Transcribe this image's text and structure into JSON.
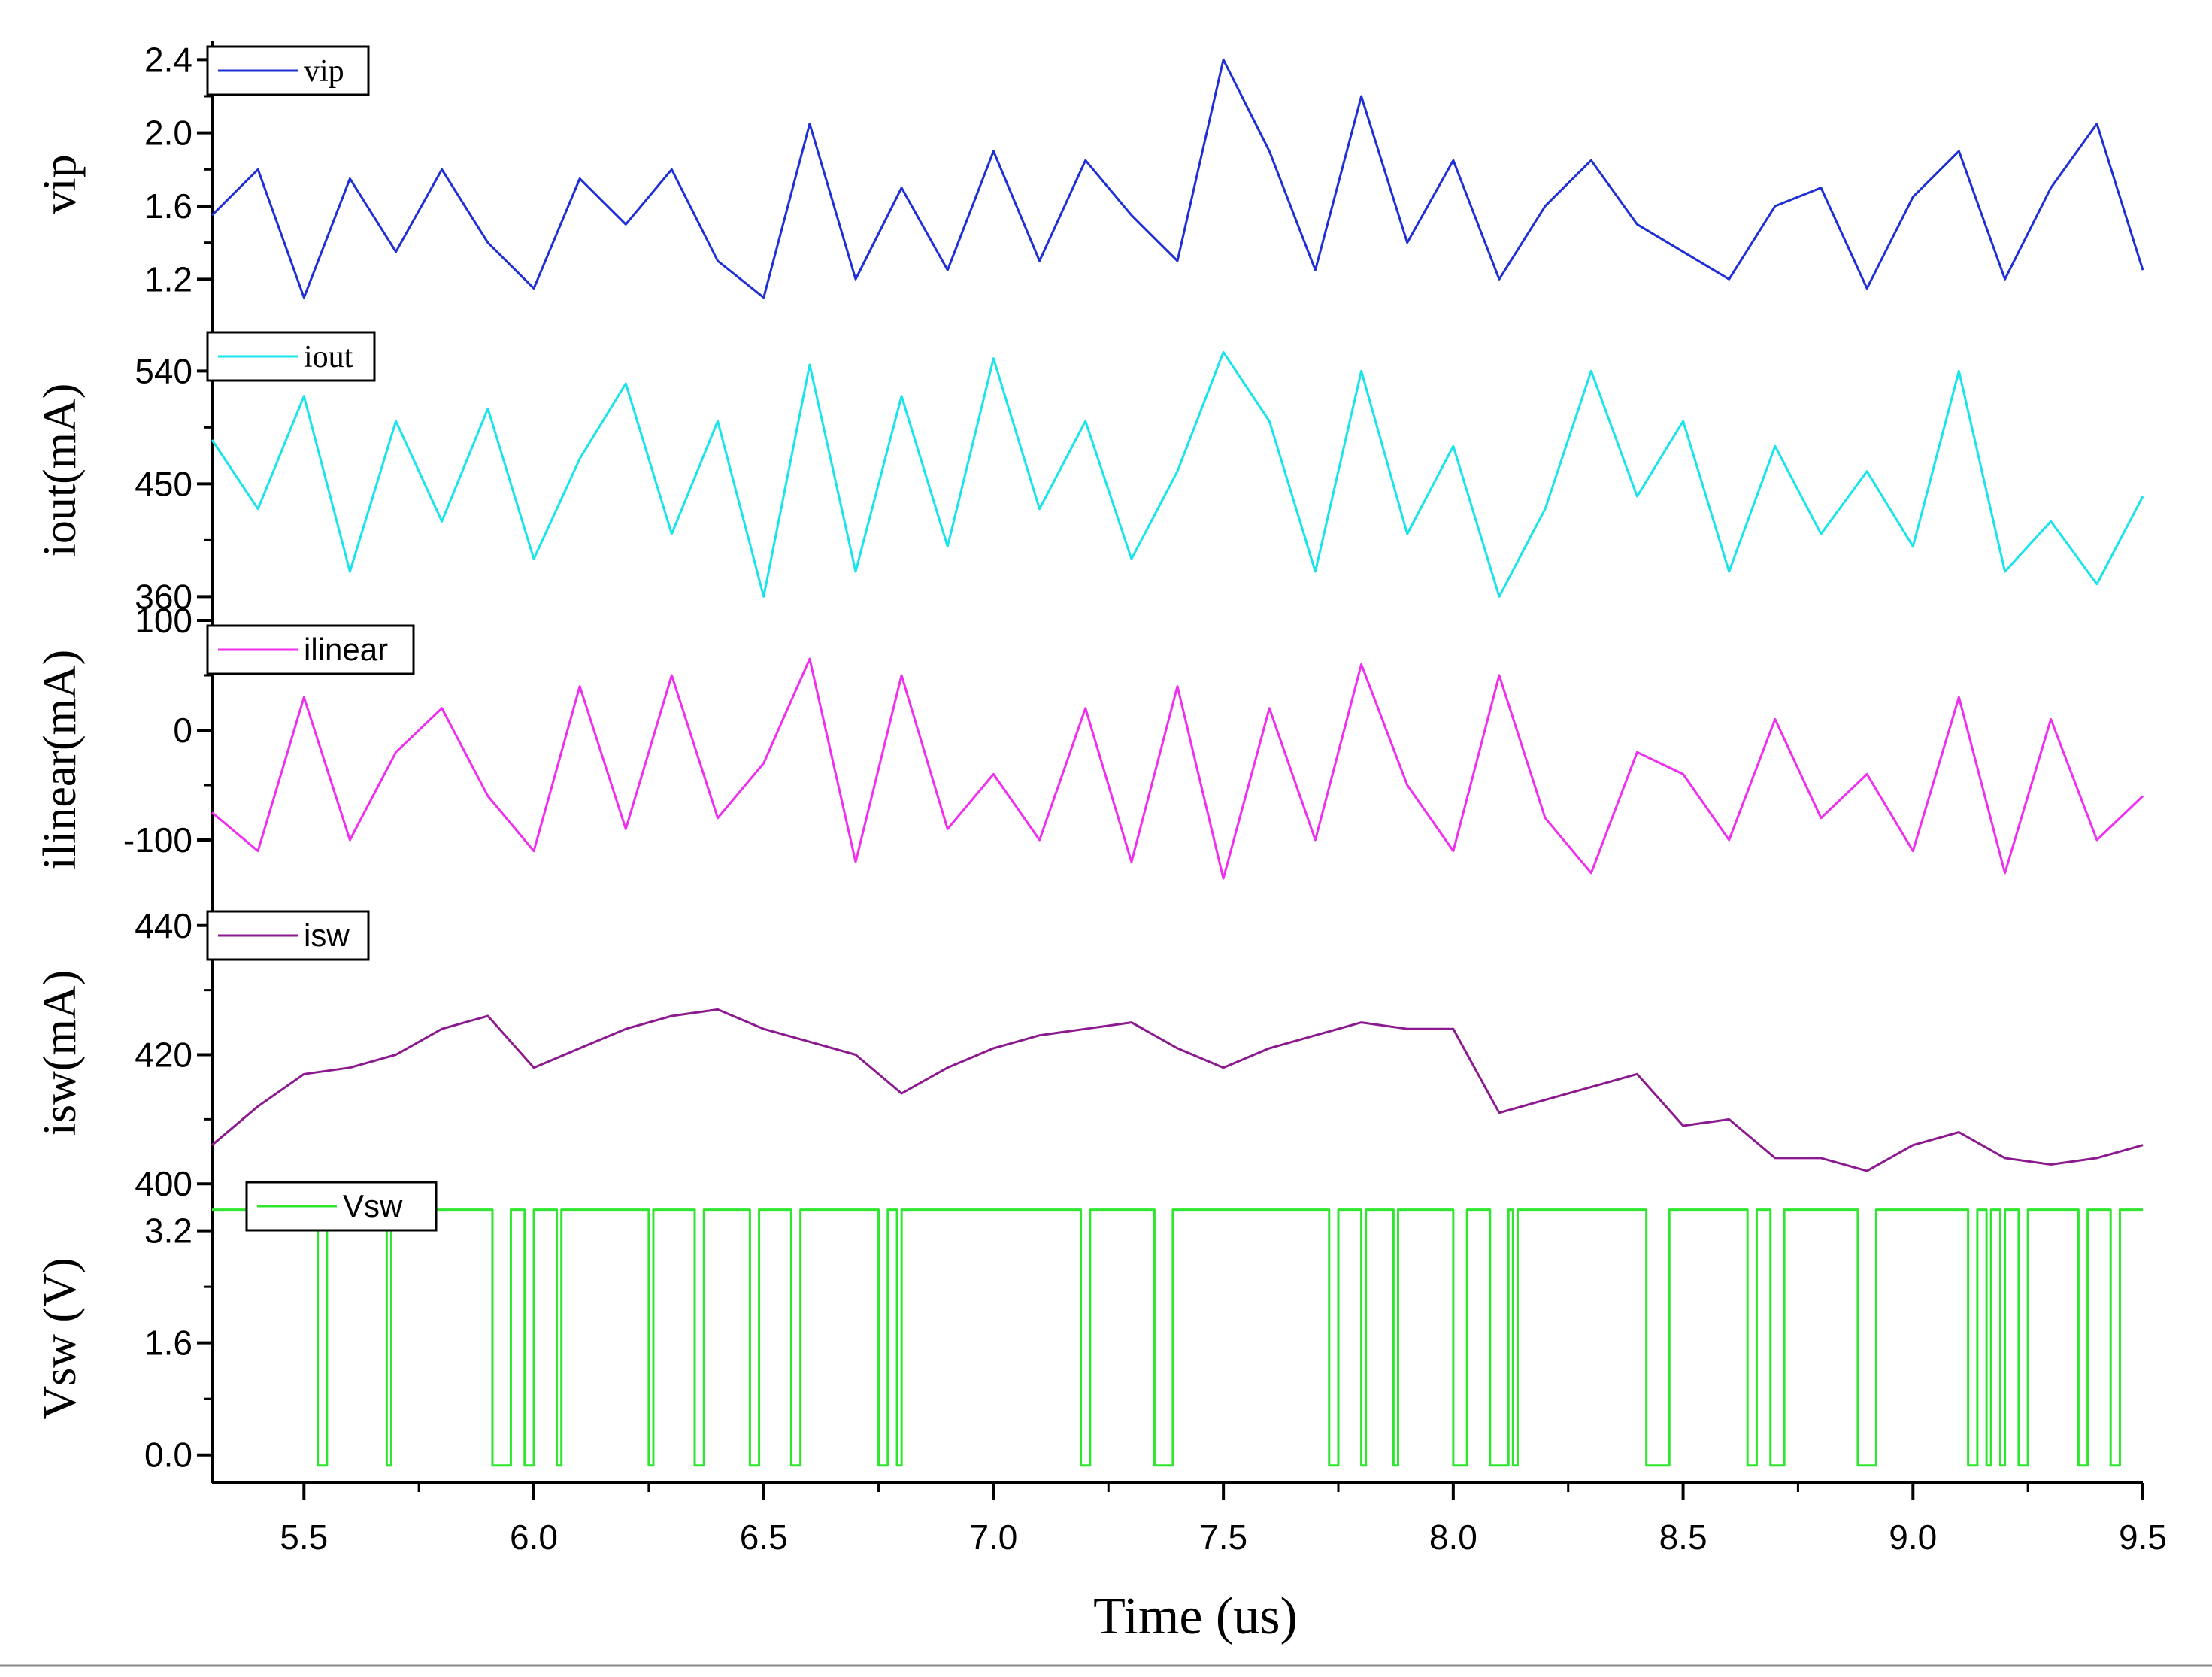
{
  "chart_data": {
    "type": "line",
    "xlabel": "Time (us)",
    "xlim": [
      5.3,
      9.5
    ],
    "xticks": [
      "5.5",
      "6.0",
      "6.5",
      "7.0",
      "7.5",
      "8.0",
      "8.5",
      "9.0",
      "9.5"
    ],
    "xtick_values": [
      5.5,
      6.0,
      6.5,
      7.0,
      7.5,
      8.0,
      8.5,
      9.0,
      9.5
    ],
    "panels": [
      {
        "key": "vip",
        "legend": "vip",
        "ylabel": "vip",
        "color": "#1f2fd6",
        "ylim": [
          1.0,
          2.5
        ],
        "yticks": [
          "1.2",
          "1.6",
          "2.0",
          "2.4"
        ],
        "ytick_values": [
          1.2,
          1.6,
          2.0,
          2.4
        ],
        "x": [
          5.3,
          5.4,
          5.5,
          5.6,
          5.7,
          5.8,
          5.9,
          6.0,
          6.1,
          6.2,
          6.3,
          6.4,
          6.5,
          6.6,
          6.7,
          6.8,
          6.9,
          7.0,
          7.1,
          7.2,
          7.3,
          7.4,
          7.5,
          7.6,
          7.7,
          7.8,
          7.9,
          8.0,
          8.1,
          8.2,
          8.3,
          8.4,
          8.5,
          8.6,
          8.7,
          8.8,
          8.9,
          9.0,
          9.1,
          9.2,
          9.3,
          9.4,
          9.5
        ],
        "values": [
          1.55,
          1.8,
          1.1,
          1.75,
          1.35,
          1.8,
          1.4,
          1.15,
          1.75,
          1.5,
          1.8,
          1.3,
          1.1,
          2.05,
          1.2,
          1.7,
          1.25,
          1.9,
          1.3,
          1.85,
          1.55,
          1.3,
          2.4,
          1.9,
          1.25,
          2.2,
          1.4,
          1.85,
          1.2,
          1.6,
          1.85,
          1.5,
          1.35,
          1.2,
          1.6,
          1.7,
          1.15,
          1.65,
          1.9,
          1.2,
          1.7,
          2.05,
          1.25
        ]
      },
      {
        "key": "iout",
        "legend": "iout",
        "ylabel": "iout(mA)",
        "color": "#18e4ec",
        "ylim": [
          350,
          575
        ],
        "yticks": [
          "360",
          "450",
          "540"
        ],
        "ytick_values": [
          360,
          450,
          540
        ],
        "x": [
          5.3,
          5.4,
          5.5,
          5.6,
          5.7,
          5.8,
          5.9,
          6.0,
          6.1,
          6.2,
          6.3,
          6.4,
          6.5,
          6.6,
          6.7,
          6.8,
          6.9,
          7.0,
          7.1,
          7.2,
          7.3,
          7.4,
          7.5,
          7.6,
          7.7,
          7.8,
          7.9,
          8.0,
          8.1,
          8.2,
          8.3,
          8.4,
          8.5,
          8.6,
          8.7,
          8.8,
          8.9,
          9.0,
          9.1,
          9.2,
          9.3,
          9.4,
          9.5
        ],
        "values": [
          485,
          430,
          520,
          380,
          500,
          420,
          510,
          390,
          470,
          530,
          410,
          500,
          360,
          545,
          380,
          520,
          400,
          550,
          430,
          500,
          390,
          460,
          555,
          500,
          380,
          540,
          410,
          480,
          360,
          430,
          540,
          440,
          500,
          380,
          480,
          410,
          460,
          400,
          540,
          380,
          420,
          370,
          440
        ]
      },
      {
        "key": "ilinear",
        "legend": "ilinear",
        "ylabel": "ilinear(mA)",
        "color": "#f02ef0",
        "ylim": [
          -150,
          100
        ],
        "yticks": [
          "-100",
          "0",
          "100"
        ],
        "ytick_values": [
          -100,
          0,
          100
        ],
        "x": [
          5.3,
          5.4,
          5.5,
          5.6,
          5.7,
          5.8,
          5.9,
          6.0,
          6.1,
          6.2,
          6.3,
          6.4,
          6.5,
          6.6,
          6.7,
          6.8,
          6.9,
          7.0,
          7.1,
          7.2,
          7.3,
          7.4,
          7.5,
          7.6,
          7.7,
          7.8,
          7.9,
          8.0,
          8.1,
          8.2,
          8.3,
          8.4,
          8.5,
          8.6,
          8.7,
          8.8,
          8.9,
          9.0,
          9.1,
          9.2,
          9.3,
          9.4,
          9.5
        ],
        "values": [
          -75,
          -110,
          30,
          -100,
          -20,
          20,
          -60,
          -110,
          40,
          -90,
          50,
          -80,
          -30,
          65,
          -120,
          50,
          -90,
          -40,
          -100,
          20,
          -120,
          40,
          -135,
          20,
          -100,
          60,
          -50,
          -110,
          50,
          -80,
          -130,
          -20,
          -40,
          -100,
          10,
          -80,
          -40,
          -110,
          30,
          -130,
          10,
          -100,
          -60
        ]
      },
      {
        "key": "isw",
        "legend": "isw",
        "ylabel": "isw(mA)",
        "color": "#8c1a8f",
        "ylim": [
          397,
          443
        ],
        "yticks": [
          "400",
          "420",
          "440"
        ],
        "ytick_values": [
          400,
          420,
          440
        ],
        "x": [
          5.3,
          5.4,
          5.5,
          5.6,
          5.7,
          5.8,
          5.9,
          6.0,
          6.1,
          6.2,
          6.3,
          6.4,
          6.5,
          6.6,
          6.7,
          6.8,
          6.9,
          7.0,
          7.1,
          7.2,
          7.3,
          7.4,
          7.5,
          7.6,
          7.7,
          7.8,
          7.9,
          8.0,
          8.1,
          8.2,
          8.3,
          8.4,
          8.5,
          8.6,
          8.7,
          8.8,
          8.9,
          9.0,
          9.1,
          9.2,
          9.3,
          9.4,
          9.5
        ],
        "values": [
          406,
          412,
          417,
          418,
          420,
          424,
          426,
          418,
          421,
          424,
          426,
          427,
          424,
          422,
          420,
          414,
          418,
          421,
          423,
          424,
          425,
          421,
          418,
          421,
          423,
          425,
          424,
          424,
          411,
          413,
          415,
          417,
          409,
          410,
          404,
          404,
          402,
          406,
          408,
          404,
          403,
          404,
          406
        ]
      },
      {
        "key": "vsw",
        "legend": "Vsw",
        "ylabel": "Vsw (V)",
        "color": "#2ee62e",
        "ylim": [
          -0.4,
          3.7
        ],
        "yticks": [
          "0.0",
          "1.6",
          "3.2"
        ],
        "ytick_values": [
          0.0,
          1.6,
          3.2
        ],
        "high": 3.5,
        "low": -0.15,
        "low_intervals": [
          [
            5.53,
            5.55
          ],
          [
            5.68,
            5.69
          ],
          [
            5.91,
            5.95
          ],
          [
            5.98,
            6.0
          ],
          [
            6.05,
            6.06
          ],
          [
            6.25,
            6.26
          ],
          [
            6.35,
            6.37
          ],
          [
            6.47,
            6.49
          ],
          [
            6.56,
            6.58
          ],
          [
            6.75,
            6.77
          ],
          [
            6.79,
            6.8
          ],
          [
            7.19,
            7.21
          ],
          [
            7.35,
            7.39
          ],
          [
            7.73,
            7.75
          ],
          [
            7.8,
            7.81
          ],
          [
            7.87,
            7.88
          ],
          [
            8.0,
            8.03
          ],
          [
            8.08,
            8.12
          ],
          [
            8.13,
            8.14
          ],
          [
            8.42,
            8.47
          ],
          [
            8.64,
            8.66
          ],
          [
            8.69,
            8.72
          ],
          [
            8.88,
            8.92
          ],
          [
            9.12,
            9.14
          ],
          [
            9.16,
            9.17
          ],
          [
            9.19,
            9.2
          ],
          [
            9.23,
            9.25
          ],
          [
            9.36,
            9.38
          ],
          [
            9.43,
            9.45
          ]
        ]
      }
    ]
  }
}
